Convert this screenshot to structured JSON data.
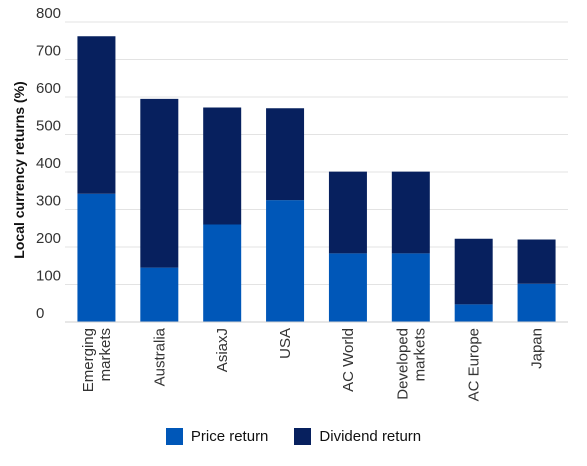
{
  "chart_data": {
    "type": "bar",
    "stacked": true,
    "categories": [
      [
        "Emerging",
        "markets"
      ],
      [
        "Australia"
      ],
      [
        "AsiaxJ"
      ],
      [
        "USA"
      ],
      [
        "AC World"
      ],
      [
        "Developed",
        "markets"
      ],
      [
        "AC Europe"
      ],
      [
        "Japan"
      ]
    ],
    "series": [
      {
        "name": "Price return",
        "color": "#0057b8",
        "values": [
          342,
          145,
          260,
          325,
          183,
          183,
          47,
          102
        ]
      },
      {
        "name": "Dividend return",
        "color": "#07205e",
        "values": [
          420,
          450,
          312,
          245,
          218,
          218,
          175,
          118
        ]
      }
    ],
    "ylabel": "Local currency returns (%)",
    "ylim": [
      0,
      800
    ],
    "yticks": [
      "0",
      "100",
      "200",
      "300",
      "400",
      "500",
      "600",
      "700",
      "800"
    ],
    "grid": true,
    "legend_position": "bottom-center"
  }
}
